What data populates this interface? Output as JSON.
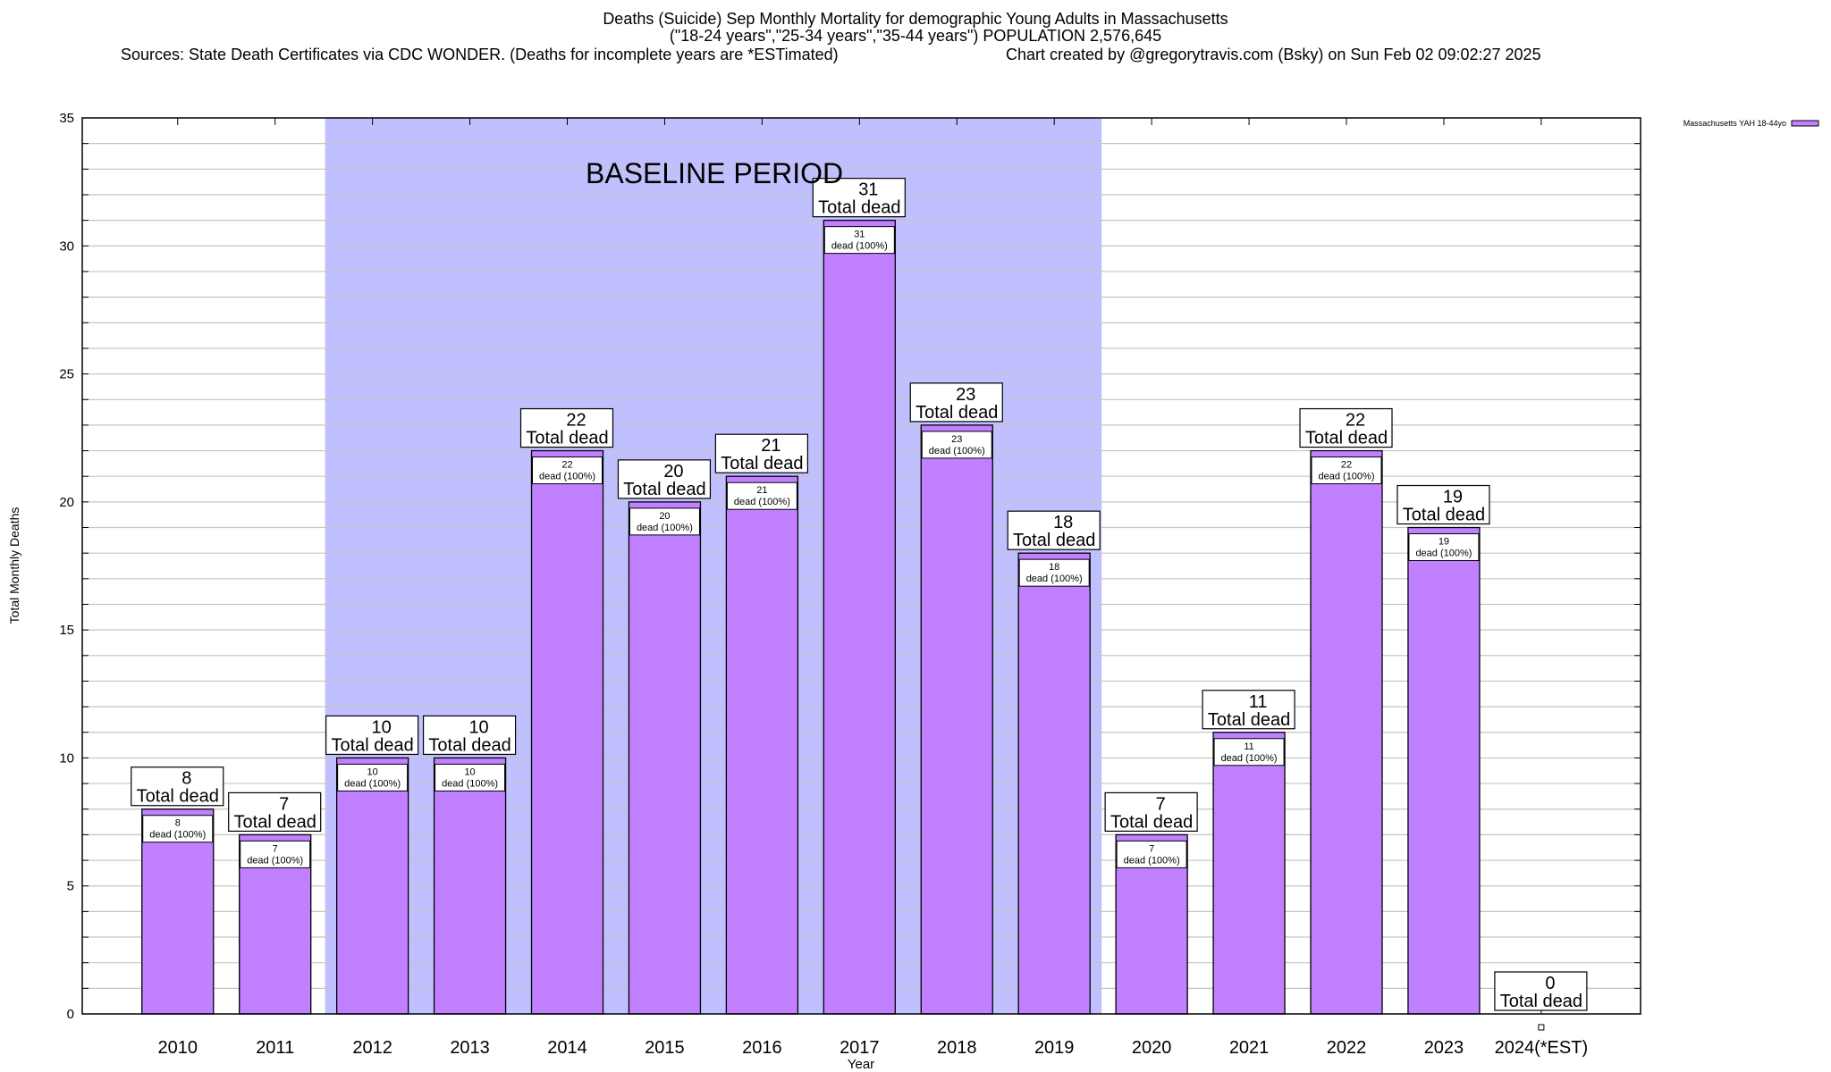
{
  "chart_data": {
    "type": "bar",
    "title_lines": [
      "Deaths (Suicide) Sep Monthly Mortality for demographic Young Adults in Massachusetts",
      "(\"18-24 years\",\"25-34 years\",\"35-44 years\") POPULATION 2,576,645"
    ],
    "sources": "Sources: State Death Certificates via CDC WONDER. (Deaths for incomplete years are *ESTimated)",
    "credit": "Chart created by @gregorytravis.com (Bsky) on Sun Feb 02 09:02:27 2025",
    "xlabel": "Year",
    "ylabel": "Total Monthly Deaths",
    "ylim": [
      0,
      35
    ],
    "yticks": [
      0,
      5,
      10,
      15,
      20,
      25,
      30,
      35
    ],
    "minor_step": 1,
    "grid": true,
    "legend": {
      "position": "top-right",
      "entries": [
        {
          "label": "Massachusetts YAH 18-44yo",
          "color": "#c080ff"
        }
      ]
    },
    "annotation": {
      "text": "BASELINE PERIOD",
      "from": "2012",
      "to": "2019",
      "color": "#c0c0ff"
    },
    "categories": [
      "2010",
      "2011",
      "2012",
      "2013",
      "2014",
      "2015",
      "2016",
      "2017",
      "2018",
      "2019",
      "2020",
      "2021",
      "2022",
      "2023",
      "2024(*EST)"
    ],
    "series": [
      {
        "name": "Massachusetts YAH 18-44yo",
        "color": "#c080ff",
        "values": [
          8,
          7,
          10,
          10,
          22,
          20,
          21,
          31,
          23,
          18,
          7,
          11,
          22,
          19,
          0
        ]
      }
    ],
    "total_label_suffix": "Total dead",
    "bar_label_suffix": "dead (100%)"
  }
}
